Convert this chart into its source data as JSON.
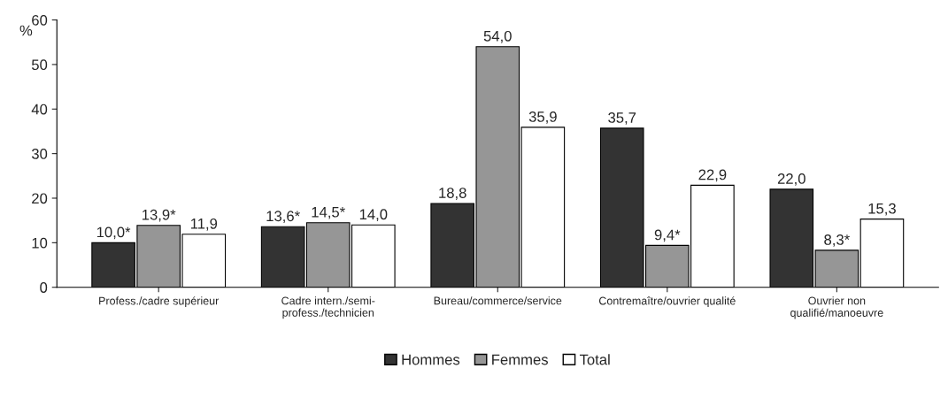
{
  "chart_data": {
    "type": "bar",
    "ylabel": "%",
    "categories": [
      "Profess./cadre supérieur",
      "Cadre intern./semi-\nprofess./technicien",
      "Bureau/commerce/service",
      "Contremaître/ouvrier qualité",
      "Ouvrier non\nqualifié/manoeuvre"
    ],
    "series": [
      {
        "name": "Hommes",
        "color": "#333333",
        "values": [
          10.0,
          13.6,
          18.8,
          35.7,
          22.0
        ],
        "value_labels": [
          "10,0*",
          "13,6*",
          "18,8",
          "35,7",
          "22,0"
        ]
      },
      {
        "name": "Femmes",
        "color": "#969696",
        "values": [
          13.9,
          14.5,
          54.0,
          9.4,
          8.3
        ],
        "value_labels": [
          "13,9*",
          "14,5*",
          "54,0",
          "9,4*",
          "8,3*"
        ]
      },
      {
        "name": "Total",
        "color": "#ffffff",
        "values": [
          11.9,
          14.0,
          35.9,
          22.9,
          15.3
        ],
        "value_labels": [
          "11,9",
          "14,0",
          "35,9",
          "22,9",
          "15,3"
        ]
      }
    ],
    "ylim": [
      0,
      60
    ],
    "yticks": [
      0,
      10,
      20,
      30,
      40,
      50,
      60
    ],
    "grid": false,
    "legend": "bottom"
  }
}
